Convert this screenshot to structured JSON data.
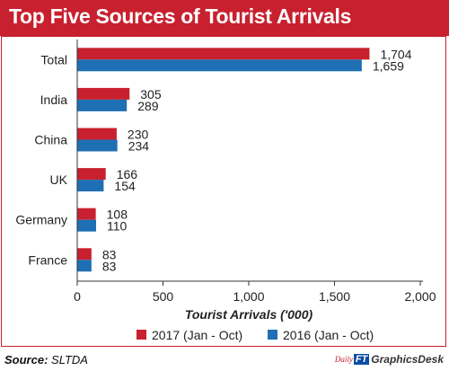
{
  "title": "Top Five Sources of Tourist Arrivals",
  "source_label": "Source:",
  "source_value": "SLTDA",
  "credit": {
    "daily": "Daily",
    "ft": "FT",
    "desk": "GraphicsDesk"
  },
  "colors": {
    "brand_red": "#c8202f",
    "series_2017": "#c8202f",
    "series_2016": "#1f6fb4"
  },
  "chart_data": {
    "type": "bar",
    "orientation": "horizontal",
    "categories": [
      "Total",
      "India",
      "China",
      "UK",
      "Germany",
      "France"
    ],
    "series": [
      {
        "name": "2017 (Jan - Oct)",
        "values": [
          1704,
          305,
          230,
          166,
          108,
          83
        ],
        "value_labels": [
          "1,704",
          "305",
          "230",
          "166",
          "108",
          "83"
        ]
      },
      {
        "name": "2016 (Jan - Oct)",
        "values": [
          1659,
          289,
          234,
          154,
          110,
          83
        ],
        "value_labels": [
          "1,659",
          "289",
          "234",
          "154",
          "110",
          "83"
        ]
      }
    ],
    "xlabel": "Tourist Arrivals ('000)",
    "xlim": [
      0,
      2000
    ],
    "xticks": [
      0,
      500,
      1000,
      1500,
      2000
    ],
    "xtick_labels": [
      "0",
      "500",
      "1,000",
      "1,500",
      "2,000"
    ],
    "grid": false,
    "legend": "bottom"
  }
}
